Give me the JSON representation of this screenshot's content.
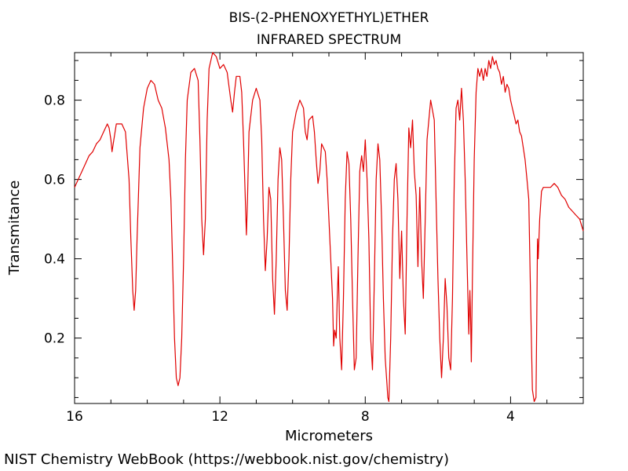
{
  "chart_data": {
    "type": "line",
    "title_lines": [
      "BIS-(2-PHENOXYETHYL)ETHER",
      "INFRARED SPECTRUM"
    ],
    "xlabel": "Micrometers",
    "ylabel": "Transmitance",
    "x_reversed": true,
    "xlim": [
      16,
      2
    ],
    "ylim": [
      0.035,
      0.92
    ],
    "x_ticks": [
      16,
      12,
      8,
      4
    ],
    "x_tick_labels": [
      "16",
      "12",
      "8",
      "4"
    ],
    "y_ticks": [
      0.2,
      0.4,
      0.6,
      0.8
    ],
    "y_tick_labels": [
      "0.2",
      "0.4",
      "0.6",
      "0.8"
    ],
    "grid": false,
    "line_color": "#e00000",
    "series": [
      {
        "points": [
          [
            16.0,
            0.58
          ],
          [
            15.9,
            0.6
          ],
          [
            15.8,
            0.62
          ],
          [
            15.7,
            0.64
          ],
          [
            15.6,
            0.66
          ],
          [
            15.5,
            0.67
          ],
          [
            15.4,
            0.69
          ],
          [
            15.3,
            0.7
          ],
          [
            15.2,
            0.72
          ],
          [
            15.1,
            0.74
          ],
          [
            15.05,
            0.73
          ],
          [
            15.0,
            0.7
          ],
          [
            14.97,
            0.67
          ],
          [
            14.92,
            0.7
          ],
          [
            14.85,
            0.74
          ],
          [
            14.7,
            0.74
          ],
          [
            14.6,
            0.72
          ],
          [
            14.5,
            0.6
          ],
          [
            14.45,
            0.45
          ],
          [
            14.4,
            0.32
          ],
          [
            14.36,
            0.27
          ],
          [
            14.32,
            0.32
          ],
          [
            14.28,
            0.45
          ],
          [
            14.2,
            0.68
          ],
          [
            14.1,
            0.78
          ],
          [
            14.0,
            0.83
          ],
          [
            13.9,
            0.85
          ],
          [
            13.8,
            0.84
          ],
          [
            13.7,
            0.8
          ],
          [
            13.6,
            0.78
          ],
          [
            13.5,
            0.73
          ],
          [
            13.4,
            0.65
          ],
          [
            13.35,
            0.55
          ],
          [
            13.3,
            0.38
          ],
          [
            13.25,
            0.2
          ],
          [
            13.2,
            0.1
          ],
          [
            13.15,
            0.08
          ],
          [
            13.1,
            0.1
          ],
          [
            13.05,
            0.2
          ],
          [
            13.0,
            0.4
          ],
          [
            12.95,
            0.65
          ],
          [
            12.9,
            0.8
          ],
          [
            12.8,
            0.87
          ],
          [
            12.7,
            0.88
          ],
          [
            12.6,
            0.85
          ],
          [
            12.55,
            0.7
          ],
          [
            12.5,
            0.5
          ],
          [
            12.45,
            0.41
          ],
          [
            12.4,
            0.5
          ],
          [
            12.35,
            0.75
          ],
          [
            12.3,
            0.88
          ],
          [
            12.2,
            0.92
          ],
          [
            12.1,
            0.91
          ],
          [
            12.0,
            0.88
          ],
          [
            11.9,
            0.89
          ],
          [
            11.8,
            0.87
          ],
          [
            11.7,
            0.8
          ],
          [
            11.65,
            0.77
          ],
          [
            11.6,
            0.82
          ],
          [
            11.55,
            0.86
          ],
          [
            11.45,
            0.86
          ],
          [
            11.4,
            0.82
          ],
          [
            11.35,
            0.7
          ],
          [
            11.3,
            0.55
          ],
          [
            11.27,
            0.46
          ],
          [
            11.24,
            0.55
          ],
          [
            11.2,
            0.72
          ],
          [
            11.1,
            0.8
          ],
          [
            11.0,
            0.83
          ],
          [
            10.9,
            0.8
          ],
          [
            10.85,
            0.7
          ],
          [
            10.8,
            0.5
          ],
          [
            10.75,
            0.37
          ],
          [
            10.7,
            0.45
          ],
          [
            10.65,
            0.58
          ],
          [
            10.6,
            0.55
          ],
          [
            10.55,
            0.35
          ],
          [
            10.5,
            0.26
          ],
          [
            10.45,
            0.4
          ],
          [
            10.4,
            0.6
          ],
          [
            10.35,
            0.68
          ],
          [
            10.3,
            0.65
          ],
          [
            10.25,
            0.5
          ],
          [
            10.2,
            0.32
          ],
          [
            10.15,
            0.27
          ],
          [
            10.1,
            0.4
          ],
          [
            10.05,
            0.6
          ],
          [
            10.0,
            0.72
          ],
          [
            9.9,
            0.77
          ],
          [
            9.8,
            0.8
          ],
          [
            9.7,
            0.78
          ],
          [
            9.65,
            0.72
          ],
          [
            9.6,
            0.7
          ],
          [
            9.55,
            0.75
          ],
          [
            9.45,
            0.76
          ],
          [
            9.4,
            0.72
          ],
          [
            9.35,
            0.65
          ],
          [
            9.3,
            0.59
          ],
          [
            9.25,
            0.62
          ],
          [
            9.2,
            0.69
          ],
          [
            9.1,
            0.67
          ],
          [
            9.05,
            0.6
          ],
          [
            9.0,
            0.5
          ],
          [
            8.95,
            0.4
          ],
          [
            8.9,
            0.3
          ],
          [
            8.87,
            0.18
          ],
          [
            8.84,
            0.22
          ],
          [
            8.8,
            0.2
          ],
          [
            8.77,
            0.3
          ],
          [
            8.74,
            0.38
          ],
          [
            8.7,
            0.2
          ],
          [
            8.65,
            0.12
          ],
          [
            8.6,
            0.3
          ],
          [
            8.55,
            0.55
          ],
          [
            8.5,
            0.67
          ],
          [
            8.45,
            0.64
          ],
          [
            8.4,
            0.5
          ],
          [
            8.35,
            0.3
          ],
          [
            8.3,
            0.12
          ],
          [
            8.25,
            0.15
          ],
          [
            8.2,
            0.4
          ],
          [
            8.15,
            0.62
          ],
          [
            8.1,
            0.66
          ],
          [
            8.05,
            0.62
          ],
          [
            8.0,
            0.7
          ],
          [
            7.95,
            0.6
          ],
          [
            7.9,
            0.45
          ],
          [
            7.85,
            0.2
          ],
          [
            7.8,
            0.12
          ],
          [
            7.75,
            0.35
          ],
          [
            7.7,
            0.6
          ],
          [
            7.65,
            0.69
          ],
          [
            7.6,
            0.65
          ],
          [
            7.55,
            0.5
          ],
          [
            7.5,
            0.3
          ],
          [
            7.45,
            0.15
          ],
          [
            7.4,
            0.08
          ],
          [
            7.38,
            0.05
          ],
          [
            7.35,
            0.04
          ],
          [
            7.3,
            0.2
          ],
          [
            7.25,
            0.45
          ],
          [
            7.2,
            0.6
          ],
          [
            7.15,
            0.64
          ],
          [
            7.1,
            0.55
          ],
          [
            7.05,
            0.35
          ],
          [
            7.0,
            0.47
          ],
          [
            6.95,
            0.3
          ],
          [
            6.9,
            0.21
          ],
          [
            6.85,
            0.5
          ],
          [
            6.8,
            0.73
          ],
          [
            6.75,
            0.68
          ],
          [
            6.7,
            0.75
          ],
          [
            6.65,
            0.62
          ],
          [
            6.6,
            0.56
          ],
          [
            6.55,
            0.38
          ],
          [
            6.5,
            0.58
          ],
          [
            6.45,
            0.4
          ],
          [
            6.4,
            0.3
          ],
          [
            6.35,
            0.5
          ],
          [
            6.3,
            0.7
          ],
          [
            6.2,
            0.8
          ],
          [
            6.1,
            0.75
          ],
          [
            6.05,
            0.55
          ],
          [
            6.0,
            0.35
          ],
          [
            5.95,
            0.2
          ],
          [
            5.9,
            0.1
          ],
          [
            5.85,
            0.2
          ],
          [
            5.8,
            0.35
          ],
          [
            5.75,
            0.28
          ],
          [
            5.7,
            0.15
          ],
          [
            5.65,
            0.12
          ],
          [
            5.6,
            0.3
          ],
          [
            5.55,
            0.6
          ],
          [
            5.5,
            0.78
          ],
          [
            5.45,
            0.8
          ],
          [
            5.4,
            0.75
          ],
          [
            5.35,
            0.83
          ],
          [
            5.3,
            0.75
          ],
          [
            5.25,
            0.6
          ],
          [
            5.2,
            0.4
          ],
          [
            5.15,
            0.21
          ],
          [
            5.12,
            0.32
          ],
          [
            5.1,
            0.25
          ],
          [
            5.08,
            0.14
          ],
          [
            5.05,
            0.35
          ],
          [
            5.0,
            0.65
          ],
          [
            4.95,
            0.82
          ],
          [
            4.9,
            0.88
          ],
          [
            4.85,
            0.86
          ],
          [
            4.8,
            0.88
          ],
          [
            4.75,
            0.85
          ],
          [
            4.7,
            0.88
          ],
          [
            4.65,
            0.86
          ],
          [
            4.6,
            0.9
          ],
          [
            4.55,
            0.88
          ],
          [
            4.5,
            0.91
          ],
          [
            4.45,
            0.89
          ],
          [
            4.4,
            0.9
          ],
          [
            4.35,
            0.88
          ],
          [
            4.3,
            0.87
          ],
          [
            4.25,
            0.84
          ],
          [
            4.2,
            0.86
          ],
          [
            4.15,
            0.82
          ],
          [
            4.1,
            0.84
          ],
          [
            4.05,
            0.83
          ],
          [
            4.0,
            0.8
          ],
          [
            3.95,
            0.78
          ],
          [
            3.9,
            0.76
          ],
          [
            3.85,
            0.74
          ],
          [
            3.8,
            0.75
          ],
          [
            3.75,
            0.72
          ],
          [
            3.7,
            0.71
          ],
          [
            3.65,
            0.68
          ],
          [
            3.6,
            0.65
          ],
          [
            3.55,
            0.6
          ],
          [
            3.5,
            0.55
          ],
          [
            3.45,
            0.3
          ],
          [
            3.4,
            0.07
          ],
          [
            3.35,
            0.04
          ],
          [
            3.3,
            0.05
          ],
          [
            3.28,
            0.25
          ],
          [
            3.26,
            0.45
          ],
          [
            3.24,
            0.4
          ],
          [
            3.2,
            0.5
          ],
          [
            3.15,
            0.57
          ],
          [
            3.1,
            0.58
          ],
          [
            3.0,
            0.58
          ],
          [
            2.9,
            0.58
          ],
          [
            2.8,
            0.59
          ],
          [
            2.7,
            0.58
          ],
          [
            2.6,
            0.56
          ],
          [
            2.5,
            0.55
          ],
          [
            2.4,
            0.53
          ],
          [
            2.3,
            0.52
          ],
          [
            2.2,
            0.51
          ],
          [
            2.1,
            0.5
          ],
          [
            2.0,
            0.47
          ]
        ]
      }
    ]
  },
  "footer": "NIST Chemistry WebBook (https://webbook.nist.gov/chemistry)"
}
